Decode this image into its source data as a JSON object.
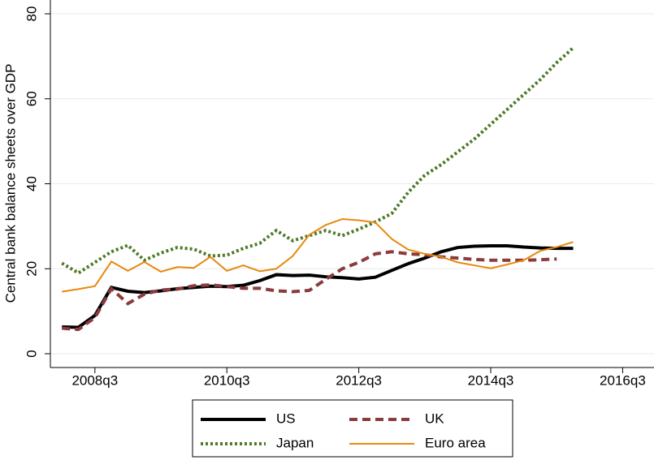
{
  "chart_data": {
    "type": "line",
    "y_label": "Central bank balance sheets over GDP",
    "x": [
      192,
      193,
      194,
      195,
      196,
      197,
      198,
      199,
      200,
      201,
      202,
      203,
      204,
      205,
      206,
      207,
      208,
      209,
      210,
      211,
      212,
      213,
      214,
      215,
      216,
      217,
      218,
      219,
      220,
      221,
      222,
      223
    ],
    "xlim": [
      191.3,
      227.9
    ],
    "xticks": [
      {
        "value": 194,
        "label": "2008q3"
      },
      {
        "value": 202,
        "label": "2010q3"
      },
      {
        "value": 210,
        "label": "2012q3"
      },
      {
        "value": 218,
        "label": "2014q3"
      },
      {
        "value": 226,
        "label": "2016q3"
      }
    ],
    "ylim": [
      -3.25,
      83.25
    ],
    "yticks": [
      0,
      20,
      40,
      60,
      80
    ],
    "grid": true,
    "series": [
      {
        "name": "US",
        "color": "#000000",
        "linestyle": "solid",
        "width": 4,
        "values": [
          6.3,
          6.2,
          9,
          15.6,
          14.7,
          14.4,
          14.8,
          15.3,
          15.6,
          15.9,
          15.8,
          16.1,
          17.2,
          18.6,
          18.4,
          18.5,
          18.1,
          17.9,
          17.6,
          18,
          19.6,
          21.2,
          22.5,
          24,
          25,
          25.3,
          25.4,
          25.4,
          25.1,
          24.9,
          24.8,
          24.8
        ]
      },
      {
        "name": "UK",
        "color": "#8b3a3e",
        "linestyle": "dash",
        "width": 4,
        "values": [
          6,
          5.7,
          8.5,
          15.3,
          11.8,
          14,
          15,
          15.2,
          16,
          16.2,
          15.8,
          15.4,
          15.4,
          14.8,
          14.6,
          14.9,
          17.5,
          20,
          21.5,
          23.5,
          24,
          23.5,
          23.3,
          22.8,
          22.5,
          22.2,
          22,
          22,
          22,
          22.1,
          22.3,
          null
        ]
      },
      {
        "name": "Japan",
        "color": "#4f7a28",
        "linestyle": "dot",
        "width": 4,
        "values": [
          21.3,
          19,
          21.5,
          24,
          25.5,
          22,
          23.7,
          25,
          24.6,
          23,
          23.2,
          24.8,
          26,
          29,
          26.6,
          27.8,
          29,
          27.8,
          29.3,
          31,
          33,
          38,
          42,
          44.5,
          47.5,
          50.5,
          54,
          57.5,
          61,
          64.5,
          68.5,
          72
        ]
      },
      {
        "name": "Euro area",
        "color": "#e8890c",
        "linestyle": "solid",
        "width": 2,
        "values": [
          14.6,
          15.2,
          15.9,
          21.7,
          19.5,
          21.6,
          19.3,
          20.4,
          20.2,
          22.8,
          19.5,
          20.8,
          19.4,
          20,
          23,
          28,
          30.3,
          31.7,
          31.4,
          30.9,
          27,
          24.5,
          23.5,
          22.8,
          21.5,
          20.8,
          20.1,
          21,
          22,
          24.2,
          25.1,
          26.3
        ]
      }
    ]
  }
}
